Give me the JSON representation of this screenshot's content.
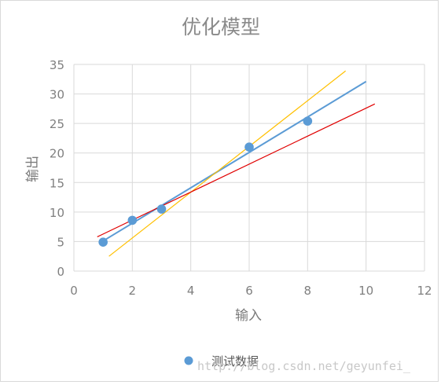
{
  "watermark": "http://blog.csdn.net/geyunfei_",
  "chart_data": {
    "type": "scatter",
    "title": "优化模型",
    "xlabel": "输入",
    "ylabel": "输出",
    "xlim": [
      0,
      12
    ],
    "ylim": [
      0,
      35
    ],
    "xticks": [
      0,
      2,
      4,
      6,
      8,
      10,
      12
    ],
    "yticks": [
      0,
      5,
      10,
      15,
      20,
      25,
      30,
      35
    ],
    "grid": true,
    "legend": "bottom",
    "series": [
      {
        "name": "测试数据",
        "kind": "points",
        "color": "#5b9bd5",
        "x": [
          1,
          2,
          3,
          6,
          8
        ],
        "y": [
          4.9,
          8.6,
          10.5,
          21.0,
          25.4
        ]
      }
    ],
    "lines": [
      {
        "color": "#5b9bd5",
        "x": [
          1,
          10
        ],
        "y": [
          5.1,
          32.1
        ]
      },
      {
        "color": "#ffc000",
        "x": [
          1.2,
          9.3
        ],
        "y": [
          2.5,
          33.9
        ]
      },
      {
        "color": "#e00000",
        "x": [
          0.8,
          10.3
        ],
        "y": [
          5.8,
          28.3
        ]
      }
    ]
  }
}
